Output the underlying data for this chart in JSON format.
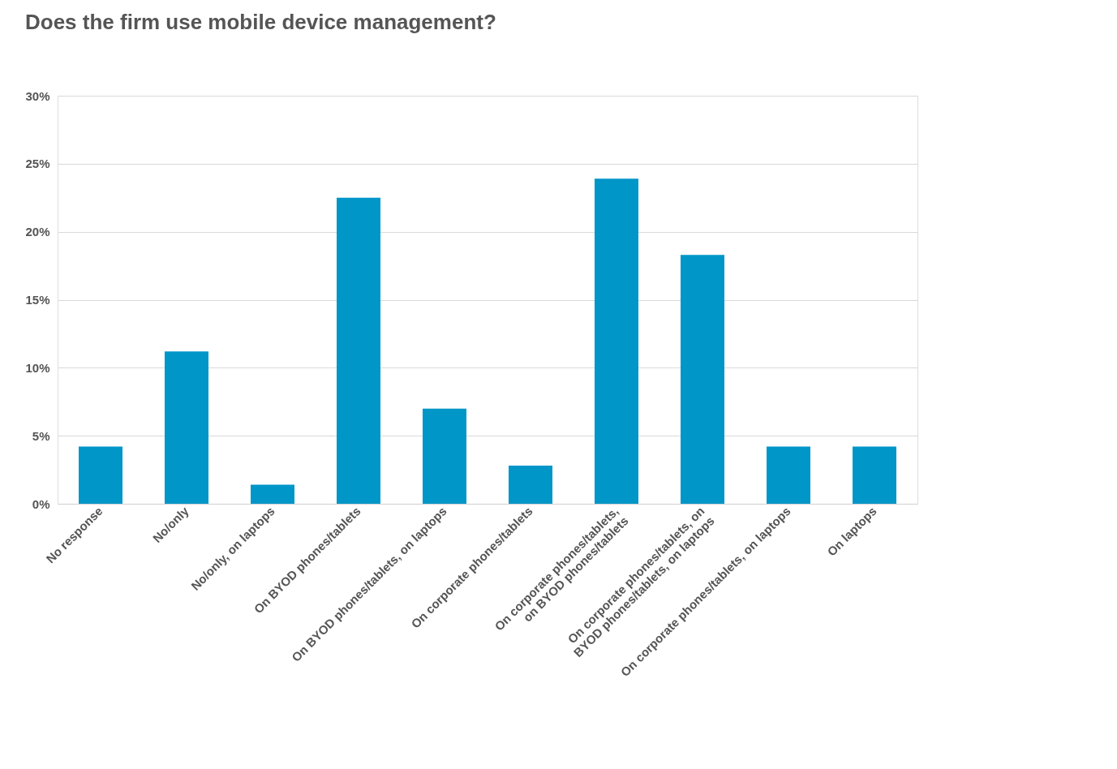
{
  "chart_data": {
    "type": "bar",
    "title": "Does the firm use mobile device management?",
    "categories": [
      "No response",
      "No/only",
      "No/only, on laptops",
      "On BYOD phones/tablets",
      "On BYOD phones/tablets, on laptops",
      "On corporate phones/tablets",
      "On corporate phones/tablets,\non BYOD phones/tablets",
      "On corporate phones/tablets, on\nBYOD phones/tablets, on laptops",
      "On corporate phones/tablets, on laptops",
      "On laptops"
    ],
    "values": [
      4.2,
      11.2,
      1.4,
      22.5,
      7.0,
      2.8,
      23.9,
      18.3,
      4.2,
      4.2
    ],
    "color": "#0096c8",
    "ylim": [
      0,
      30
    ],
    "yticks": [
      {
        "value": 0,
        "label": "0%"
      },
      {
        "value": 5,
        "label": "5%"
      },
      {
        "value": 10,
        "label": "10%"
      },
      {
        "value": 15,
        "label": "15%"
      },
      {
        "value": 20,
        "label": "20%"
      },
      {
        "value": 25,
        "label": "25%"
      },
      {
        "value": 30,
        "label": "30%"
      }
    ],
    "grid": "y"
  }
}
